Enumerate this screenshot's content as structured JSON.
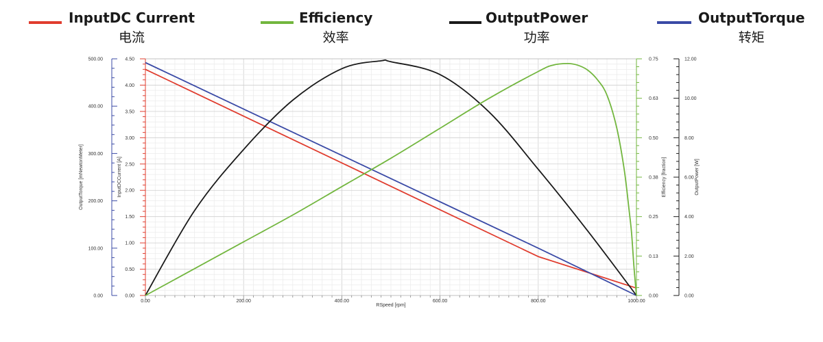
{
  "legend": [
    {
      "name": "InputDC Current",
      "zh": "电流",
      "color": "#e03c2e"
    },
    {
      "name": "Efficiency",
      "zh": "效率",
      "color": "#72b63e"
    },
    {
      "name": "OutputPower",
      "zh": "功率",
      "color": "#1a1a1a"
    },
    {
      "name": "OutputTorque",
      "zh": "转矩",
      "color": "#3a4aa6"
    }
  ],
  "chart_data": {
    "type": "line",
    "xlabel": "RSpeed [rpm]",
    "x_ticks": [
      "0.00",
      "200.00",
      "400.00",
      "600.00",
      "800.00",
      "1000.00"
    ],
    "xlim": [
      0,
      1000
    ],
    "grid": true,
    "axes": {
      "torque": {
        "label": "OutputTorque [mNewtonMeter]",
        "range": [
          0,
          500
        ],
        "ticks": [
          "0.00",
          "100.00",
          "200.00",
          "300.00",
          "400.00",
          "500.00"
        ],
        "color": "#3a4aa6"
      },
      "current": {
        "label": "InputDCCurrent [A]",
        "range": [
          0,
          4.5
        ],
        "ticks": [
          "0.00",
          "0.50",
          "1.00",
          "1.50",
          "2.00",
          "2.50",
          "3.00",
          "3.50",
          "4.00",
          "4.50"
        ],
        "color": "#e03c2e"
      },
      "efficiency": {
        "label": "Efficiency [fraction]",
        "range": [
          0,
          0.75
        ],
        "ticks": [
          "0.00",
          "0.13",
          "0.25",
          "0.38",
          "0.50",
          "0.63",
          "0.75"
        ],
        "color": "#72b63e"
      },
      "power": {
        "label": "OutputPower [W]",
        "range": [
          0,
          12
        ],
        "ticks": [
          "0.00",
          "2.00",
          "4.00",
          "6.00",
          "8.00",
          "10.00",
          "12.00"
        ],
        "color": "#1a1a1a"
      }
    },
    "series": [
      {
        "name": "InputDC Current",
        "axis": "current",
        "color": "#e03c2e",
        "x": [
          0,
          200,
          400,
          600,
          800,
          1000
        ],
        "y": [
          4.3,
          3.41,
          2.52,
          1.63,
          0.74,
          0.14
        ]
      },
      {
        "name": "OutputTorque",
        "axis": "torque",
        "color": "#3a4aa6",
        "x": [
          0,
          200,
          400,
          600,
          800,
          1000
        ],
        "y": [
          492,
          394,
          296,
          198,
          100,
          0
        ]
      },
      {
        "name": "OutputPower",
        "axis": "power",
        "color": "#1a1a1a",
        "x": [
          0,
          100,
          200,
          300,
          400,
          480,
          500,
          600,
          700,
          800,
          900,
          1000
        ],
        "y": [
          0,
          4.3,
          7.4,
          9.9,
          11.5,
          11.9,
          11.85,
          11.2,
          9.3,
          6.4,
          3.3,
          0
        ]
      },
      {
        "name": "Efficiency",
        "axis": "efficiency",
        "color": "#72b63e",
        "x": [
          0,
          100,
          200,
          300,
          400,
          500,
          600,
          700,
          800,
          830,
          860,
          880,
          900,
          920,
          940,
          960,
          975,
          985,
          990,
          995,
          1000
        ],
        "y": [
          0,
          0.085,
          0.17,
          0.255,
          0.345,
          0.435,
          0.53,
          0.625,
          0.71,
          0.73,
          0.735,
          0.73,
          0.715,
          0.685,
          0.635,
          0.53,
          0.4,
          0.27,
          0.2,
          0.09,
          0
        ]
      }
    ]
  }
}
